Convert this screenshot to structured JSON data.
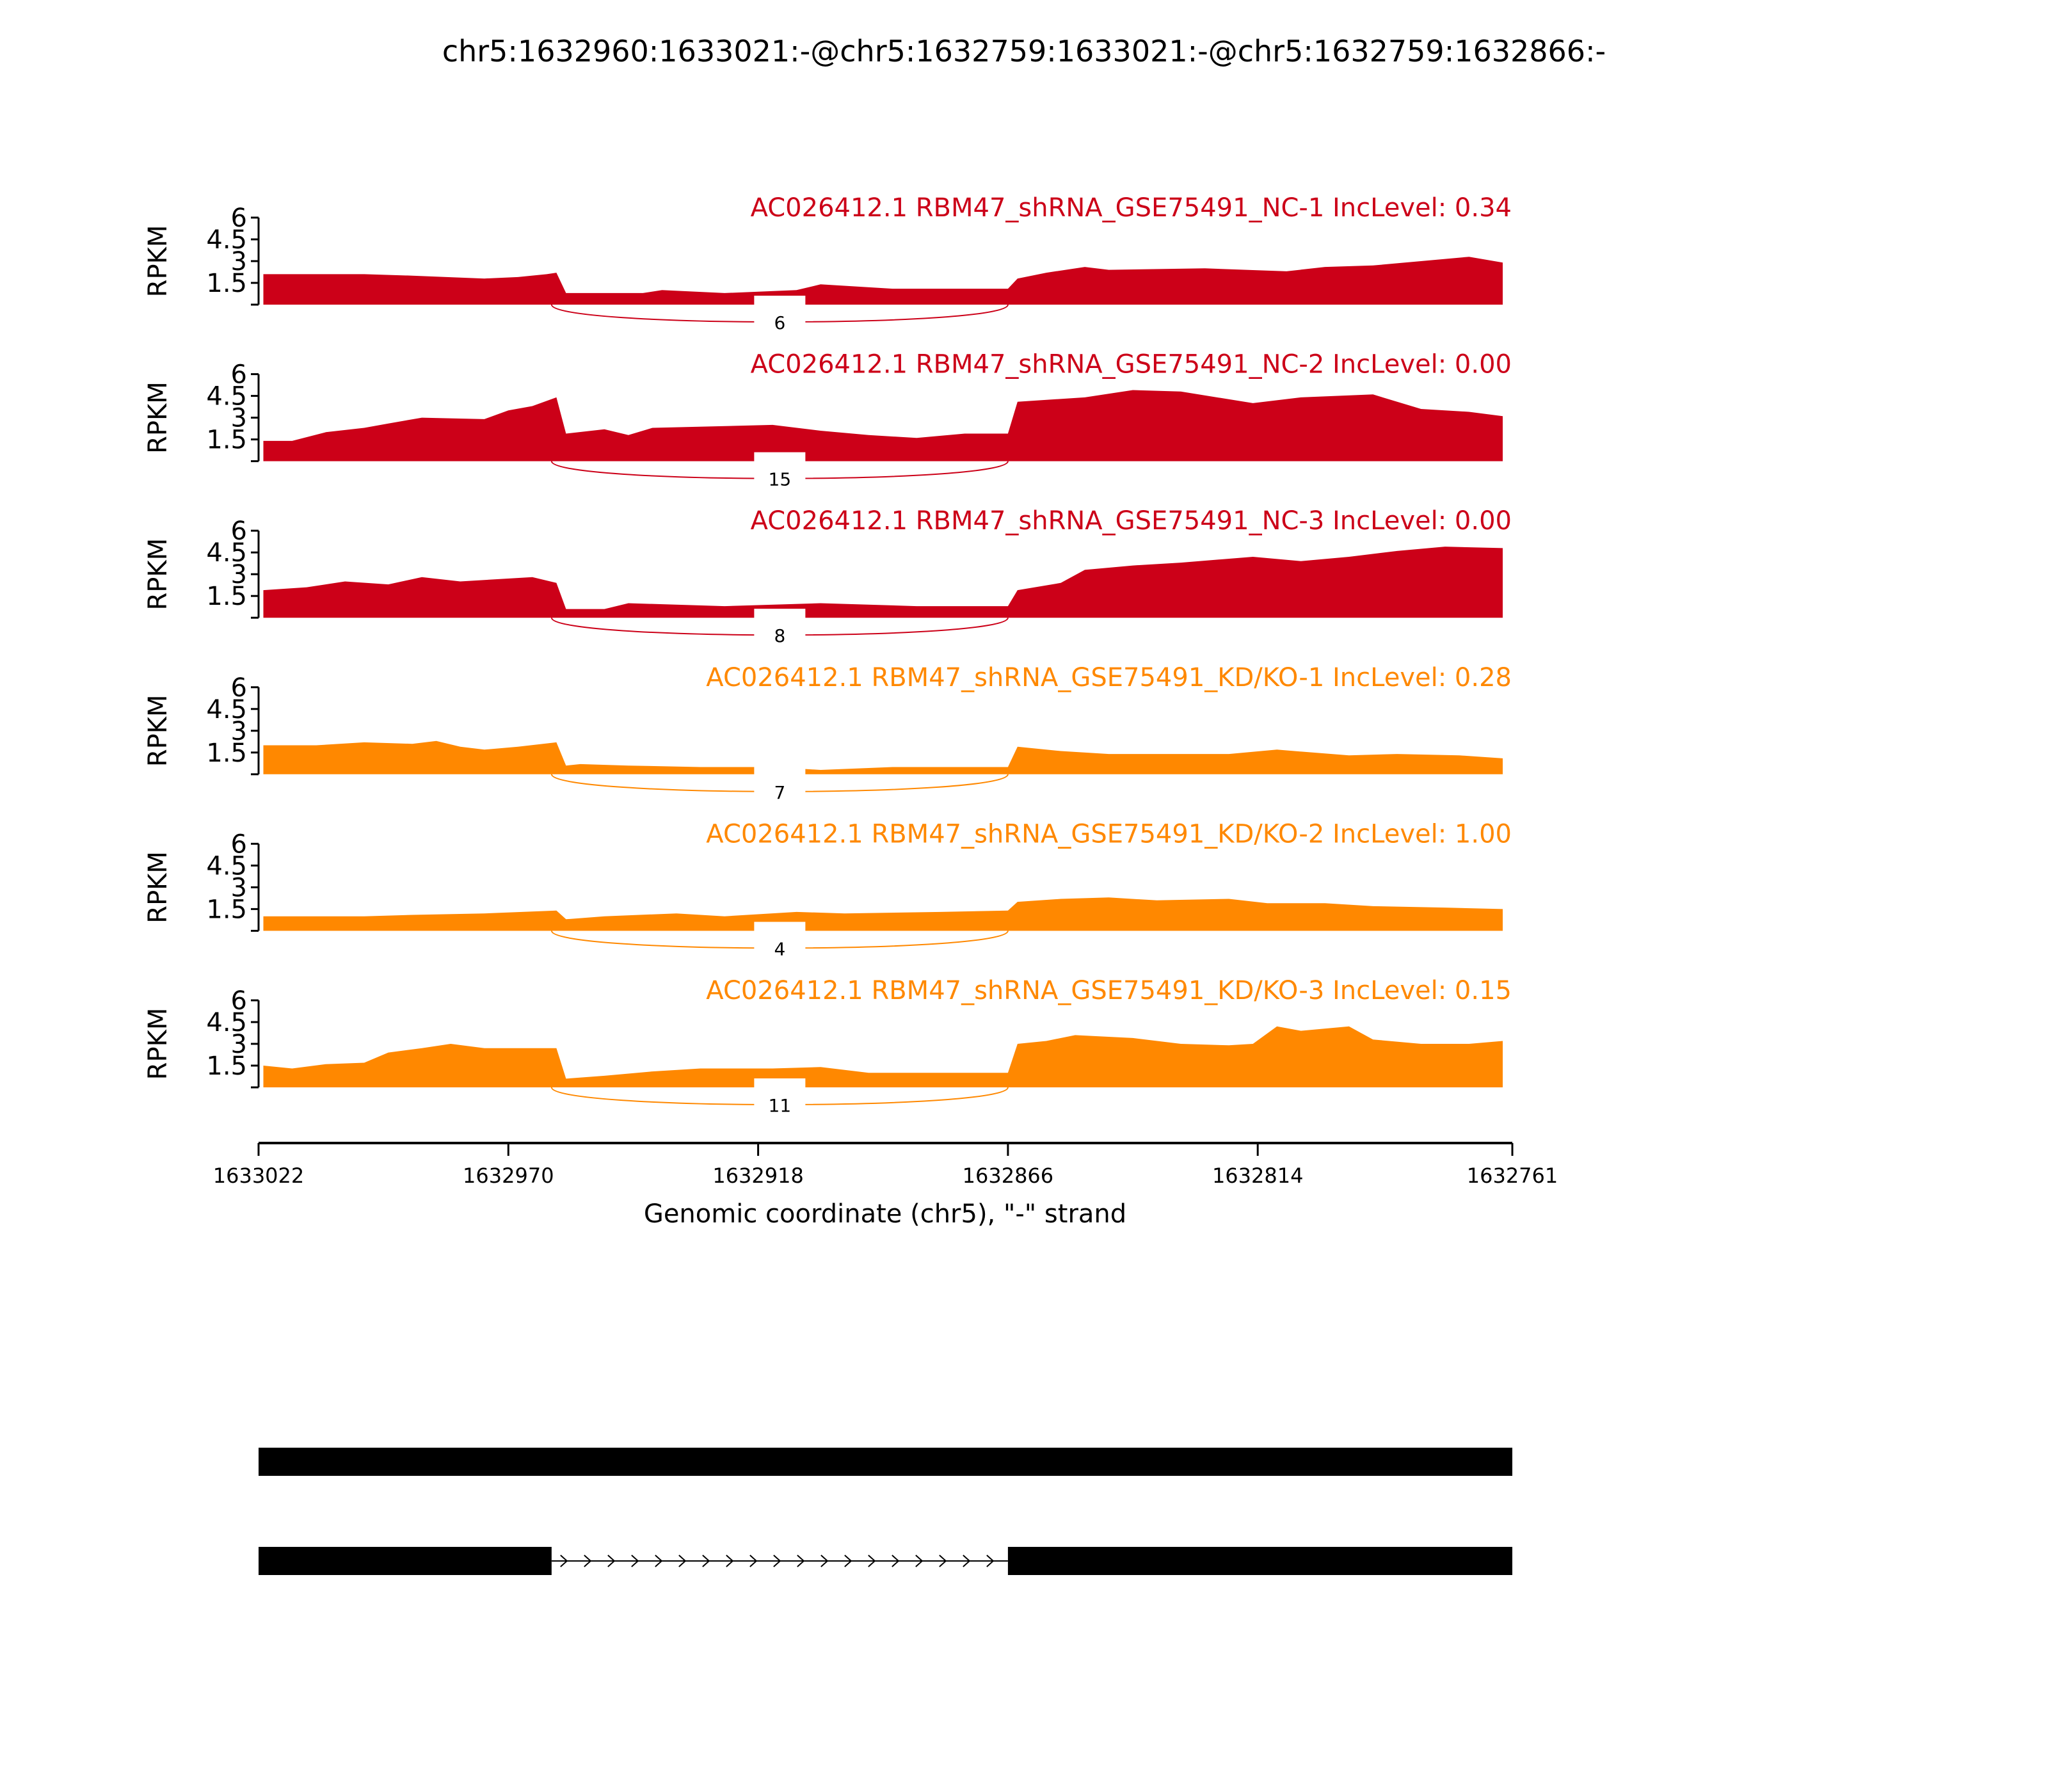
{
  "chart_data": {
    "type": "area",
    "title": "chr5:1632960:1633021:-@chr5:1632759:1633021:-@chr5:1632759:1632866:-",
    "xlabel": "Genomic coordinate (chr5), \"-\" strand",
    "ylabel": "RPKM",
    "xlim": [
      1633022,
      1632761
    ],
    "ylim": [
      0,
      6
    ],
    "x_ticks": [
      "1633022",
      "1632970",
      "1632918",
      "1632866",
      "1632814",
      "1632761"
    ],
    "y_ticks": [
      "1.5",
      "3",
      "4.5",
      "6"
    ],
    "junction": {
      "start": 1632961,
      "end": 1632866
    },
    "colors": {
      "NC": "#cc0018",
      "KD": "#ff8800"
    },
    "series": [
      {
        "name": "AC026412.1 RBM47_shRNA_GSE75491_NC-1 IncLevel: 0.34",
        "group": "NC",
        "junction_count": "6",
        "points": [
          [
            1633021,
            2.1
          ],
          [
            1633000,
            2.1
          ],
          [
            1632990,
            2.0
          ],
          [
            1632975,
            1.8
          ],
          [
            1632968,
            1.9
          ],
          [
            1632962,
            2.1
          ],
          [
            1632960,
            2.2
          ],
          [
            1632958,
            0.8
          ],
          [
            1632942,
            0.8
          ],
          [
            1632938,
            1.0
          ],
          [
            1632925,
            0.8
          ],
          [
            1632910,
            1.0
          ],
          [
            1632905,
            1.4
          ],
          [
            1632890,
            1.1
          ],
          [
            1632866,
            1.1
          ],
          [
            1632864,
            1.8
          ],
          [
            1632858,
            2.2
          ],
          [
            1632850,
            2.6
          ],
          [
            1632845,
            2.4
          ],
          [
            1632825,
            2.5
          ],
          [
            1632808,
            2.3
          ],
          [
            1632800,
            2.6
          ],
          [
            1632790,
            2.7
          ],
          [
            1632780,
            3.0
          ],
          [
            1632770,
            3.3
          ],
          [
            1632763,
            2.9
          ]
        ]
      },
      {
        "name": "AC026412.1 RBM47_shRNA_GSE75491_NC-2 IncLevel: 0.00",
        "group": "NC",
        "junction_count": "15",
        "points": [
          [
            1633021,
            1.4
          ],
          [
            1633015,
            1.4
          ],
          [
            1633008,
            2.0
          ],
          [
            1633000,
            2.3
          ],
          [
            1632995,
            2.6
          ],
          [
            1632988,
            3.0
          ],
          [
            1632975,
            2.9
          ],
          [
            1632970,
            3.5
          ],
          [
            1632965,
            3.8
          ],
          [
            1632960,
            4.4
          ],
          [
            1632958,
            1.9
          ],
          [
            1632950,
            2.2
          ],
          [
            1632945,
            1.8
          ],
          [
            1632940,
            2.3
          ],
          [
            1632915,
            2.5
          ],
          [
            1632905,
            2.1
          ],
          [
            1632895,
            1.8
          ],
          [
            1632885,
            1.6
          ],
          [
            1632875,
            1.9
          ],
          [
            1632866,
            1.9
          ],
          [
            1632864,
            4.1
          ],
          [
            1632850,
            4.4
          ],
          [
            1632840,
            4.9
          ],
          [
            1632830,
            4.8
          ],
          [
            1632815,
            4.0
          ],
          [
            1632805,
            4.4
          ],
          [
            1632790,
            4.6
          ],
          [
            1632780,
            3.6
          ],
          [
            1632770,
            3.4
          ],
          [
            1632763,
            3.1
          ]
        ]
      },
      {
        "name": "AC026412.1 RBM47_shRNA_GSE75491_NC-3 IncLevel: 0.00",
        "group": "NC",
        "junction_count": "8",
        "points": [
          [
            1633021,
            1.9
          ],
          [
            1633012,
            2.1
          ],
          [
            1633004,
            2.5
          ],
          [
            1632995,
            2.3
          ],
          [
            1632988,
            2.8
          ],
          [
            1632980,
            2.5
          ],
          [
            1632965,
            2.8
          ],
          [
            1632960,
            2.4
          ],
          [
            1632958,
            0.6
          ],
          [
            1632950,
            0.6
          ],
          [
            1632945,
            1.0
          ],
          [
            1632925,
            0.8
          ],
          [
            1632905,
            1.0
          ],
          [
            1632885,
            0.8
          ],
          [
            1632866,
            0.8
          ],
          [
            1632864,
            1.9
          ],
          [
            1632855,
            2.4
          ],
          [
            1632850,
            3.3
          ],
          [
            1632840,
            3.6
          ],
          [
            1632830,
            3.8
          ],
          [
            1632815,
            4.2
          ],
          [
            1632805,
            3.9
          ],
          [
            1632795,
            4.2
          ],
          [
            1632785,
            4.6
          ],
          [
            1632775,
            4.9
          ],
          [
            1632763,
            4.8
          ]
        ]
      },
      {
        "name": "AC026412.1 RBM47_shRNA_GSE75491_KD/KO-1 IncLevel: 0.28",
        "group": "KD",
        "junction_count": "7",
        "points": [
          [
            1633021,
            2.0
          ],
          [
            1633010,
            2.0
          ],
          [
            1633000,
            2.2
          ],
          [
            1632990,
            2.1
          ],
          [
            1632985,
            2.3
          ],
          [
            1632980,
            1.9
          ],
          [
            1632975,
            1.7
          ],
          [
            1632968,
            1.9
          ],
          [
            1632960,
            2.2
          ],
          [
            1632958,
            0.6
          ],
          [
            1632955,
            0.7
          ],
          [
            1632945,
            0.6
          ],
          [
            1632930,
            0.5
          ],
          [
            1632915,
            0.5
          ],
          [
            1632905,
            0.3
          ],
          [
            1632890,
            0.5
          ],
          [
            1632866,
            0.5
          ],
          [
            1632864,
            1.9
          ],
          [
            1632855,
            1.6
          ],
          [
            1632845,
            1.4
          ],
          [
            1632820,
            1.4
          ],
          [
            1632810,
            1.7
          ],
          [
            1632795,
            1.3
          ],
          [
            1632785,
            1.4
          ],
          [
            1632772,
            1.3
          ],
          [
            1632763,
            1.1
          ]
        ]
      },
      {
        "name": "AC026412.1 RBM47_shRNA_GSE75491_KD/KO-2 IncLevel: 1.00",
        "group": "KD",
        "junction_count": "4",
        "points": [
          [
            1633021,
            1.0
          ],
          [
            1633000,
            1.0
          ],
          [
            1632990,
            1.1
          ],
          [
            1632975,
            1.2
          ],
          [
            1632960,
            1.4
          ],
          [
            1632958,
            0.8
          ],
          [
            1632950,
            1.0
          ],
          [
            1632935,
            1.2
          ],
          [
            1632925,
            1.0
          ],
          [
            1632910,
            1.3
          ],
          [
            1632900,
            1.2
          ],
          [
            1632880,
            1.3
          ],
          [
            1632866,
            1.4
          ],
          [
            1632864,
            2.0
          ],
          [
            1632855,
            2.2
          ],
          [
            1632845,
            2.3
          ],
          [
            1632835,
            2.1
          ],
          [
            1632820,
            2.2
          ],
          [
            1632812,
            1.9
          ],
          [
            1632800,
            1.9
          ],
          [
            1632790,
            1.7
          ],
          [
            1632775,
            1.6
          ],
          [
            1632763,
            1.5
          ]
        ]
      },
      {
        "name": "AC026412.1 RBM47_shRNA_GSE75491_KD/KO-3 IncLevel: 0.15",
        "group": "KD",
        "junction_count": "11",
        "points": [
          [
            1633021,
            1.5
          ],
          [
            1633015,
            1.3
          ],
          [
            1633008,
            1.6
          ],
          [
            1633000,
            1.7
          ],
          [
            1632995,
            2.4
          ],
          [
            1632988,
            2.7
          ],
          [
            1632982,
            3.0
          ],
          [
            1632975,
            2.7
          ],
          [
            1632960,
            2.7
          ],
          [
            1632958,
            0.6
          ],
          [
            1632950,
            0.8
          ],
          [
            1632940,
            1.1
          ],
          [
            1632930,
            1.3
          ],
          [
            1632915,
            1.3
          ],
          [
            1632905,
            1.4
          ],
          [
            1632895,
            1.0
          ],
          [
            1632866,
            1.0
          ],
          [
            1632864,
            3.0
          ],
          [
            1632858,
            3.2
          ],
          [
            1632852,
            3.6
          ],
          [
            1632840,
            3.4
          ],
          [
            1632830,
            3.0
          ],
          [
            1632820,
            2.9
          ],
          [
            1632815,
            3.0
          ],
          [
            1632810,
            4.2
          ],
          [
            1632805,
            3.9
          ],
          [
            1632795,
            4.2
          ],
          [
            1632790,
            3.3
          ],
          [
            1632780,
            3.0
          ],
          [
            1632770,
            3.0
          ],
          [
            1632763,
            3.2
          ]
        ]
      }
    ],
    "gene_models": [
      {
        "exons": [
          [
            1633022,
            1632761
          ]
        ]
      },
      {
        "exons": [
          [
            1633022,
            1632961
          ],
          [
            1632866,
            1632761
          ]
        ]
      }
    ]
  }
}
